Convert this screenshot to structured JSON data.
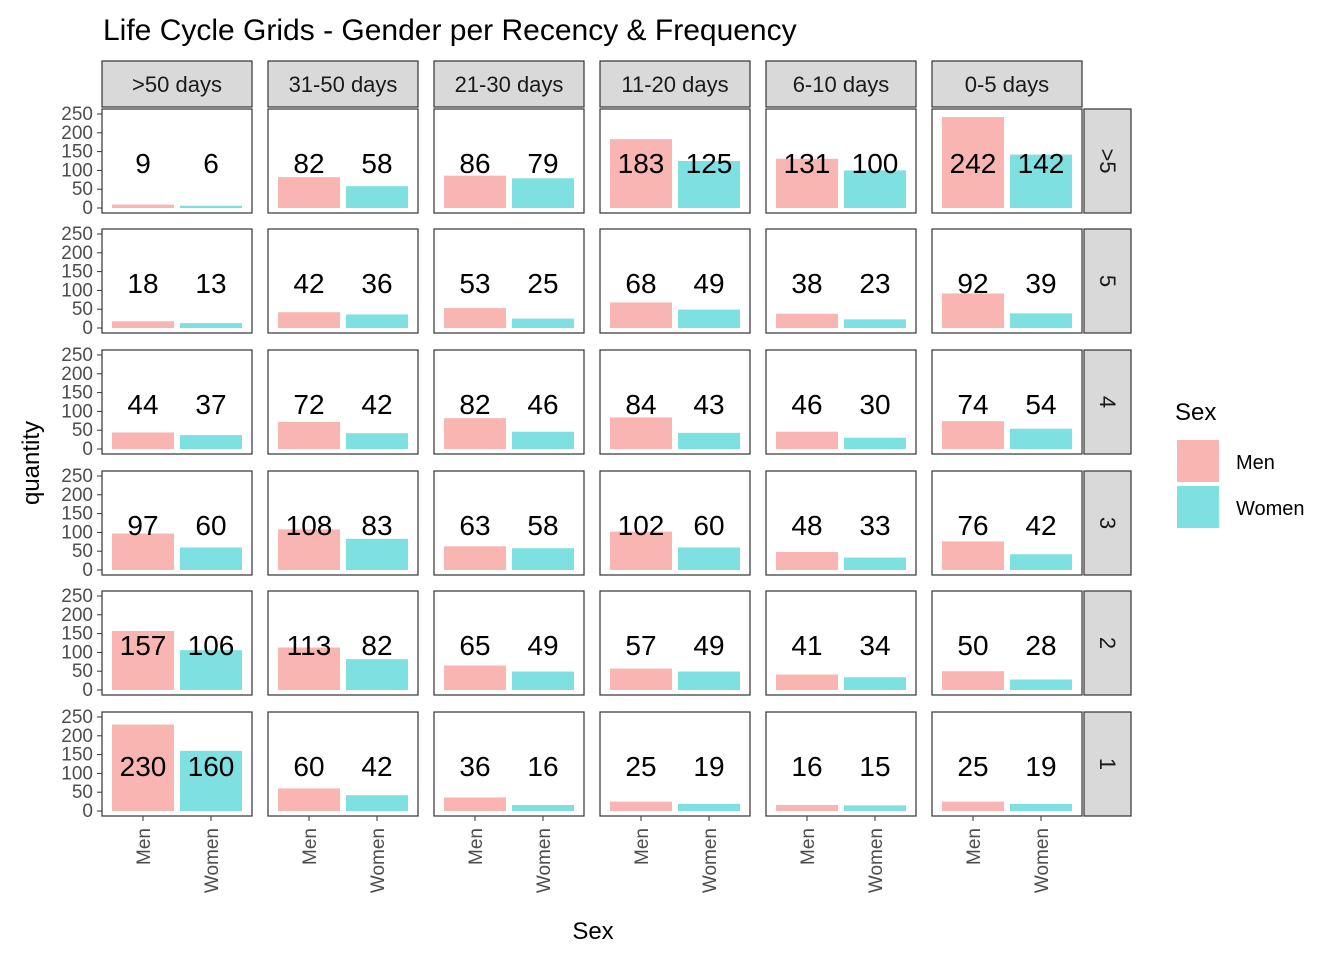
{
  "chart_data": {
    "type": "bar",
    "title": "Life Cycle Grids - Gender per Recency & Frequency",
    "xlabel": "Sex",
    "ylabel": "quantity",
    "ylim": [
      0,
      250
    ],
    "yticks": [
      "0",
      "50",
      "100",
      "150",
      "200",
      "250"
    ],
    "grid": false,
    "legend_position": "right",
    "legend_title": "Sex",
    "categories": [
      "Men",
      "Women"
    ],
    "colors": {
      "Men": "#F8B5B2",
      "Women": "#7FE0E2"
    },
    "column_facets": [
      ">50 days",
      "31-50 days",
      "21-30 days",
      "11-20 days",
      "6-10 days",
      "0-5 days"
    ],
    "row_facets": [
      ">5",
      "5",
      "4",
      "3",
      "2",
      "1"
    ],
    "cells": [
      [
        [
          9,
          6
        ],
        [
          82,
          58
        ],
        [
          86,
          79
        ],
        [
          183,
          125
        ],
        [
          131,
          100
        ],
        [
          242,
          142
        ]
      ],
      [
        [
          18,
          13
        ],
        [
          42,
          36
        ],
        [
          53,
          25
        ],
        [
          68,
          49
        ],
        [
          38,
          23
        ],
        [
          92,
          39
        ]
      ],
      [
        [
          44,
          37
        ],
        [
          72,
          42
        ],
        [
          82,
          46
        ],
        [
          84,
          43
        ],
        [
          46,
          30
        ],
        [
          74,
          54
        ]
      ],
      [
        [
          97,
          60
        ],
        [
          108,
          83
        ],
        [
          63,
          58
        ],
        [
          102,
          60
        ],
        [
          48,
          33
        ],
        [
          76,
          42
        ]
      ],
      [
        [
          157,
          106
        ],
        [
          113,
          82
        ],
        [
          65,
          49
        ],
        [
          57,
          49
        ],
        [
          41,
          34
        ],
        [
          50,
          28
        ]
      ],
      [
        [
          230,
          160
        ],
        [
          60,
          42
        ],
        [
          36,
          16
        ],
        [
          25,
          19
        ],
        [
          16,
          15
        ],
        [
          25,
          19
        ]
      ]
    ]
  }
}
